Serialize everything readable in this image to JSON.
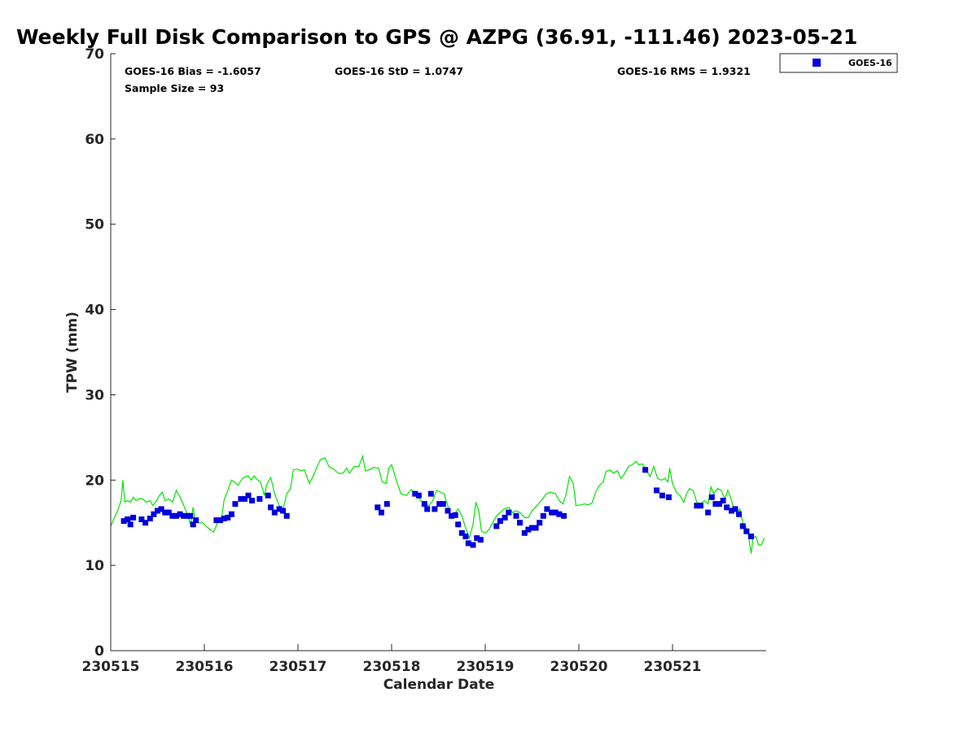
{
  "chart_data": {
    "type": "scatter",
    "title": "Weekly Full Disk Comparison to GPS @ AZPG (36.91, -111.46) 2023-05-21",
    "xlabel": "Calendar Date",
    "ylabel": "TPW (mm)",
    "xlim": [
      0,
      7
    ],
    "ylim": [
      0,
      70
    ],
    "yticks": [
      0,
      10,
      20,
      30,
      40,
      50,
      60,
      70
    ],
    "xticks": [
      {
        "value": 0,
        "label": "230515"
      },
      {
        "value": 1,
        "label": "230516"
      },
      {
        "value": 2,
        "label": "230517"
      },
      {
        "value": 3,
        "label": "230518"
      },
      {
        "value": 4,
        "label": "230519"
      },
      {
        "value": 5,
        "label": "230520"
      },
      {
        "value": 6,
        "label": "230521"
      }
    ],
    "grid": false,
    "legend_position": "outside-top-right",
    "stats": {
      "bias": "GOES-16 Bias = -1.6057",
      "std": "GOES-16 StD = 1.0747",
      "rms": "GOES-16 RMS = 1.9321",
      "sample": "Sample Size = 93"
    },
    "series": [
      {
        "name": "GOES-16",
        "kind": "scatter",
        "marker": "square",
        "color": "#0000dd",
        "points": [
          [
            0.14,
            15.2
          ],
          [
            0.18,
            15.4
          ],
          [
            0.21,
            14.8
          ],
          [
            0.24,
            15.6
          ],
          [
            0.33,
            15.4
          ],
          [
            0.37,
            15.0
          ],
          [
            0.42,
            15.5
          ],
          [
            0.46,
            16.0
          ],
          [
            0.5,
            16.4
          ],
          [
            0.54,
            16.6
          ],
          [
            0.58,
            16.2
          ],
          [
            0.62,
            16.2
          ],
          [
            0.66,
            15.8
          ],
          [
            0.7,
            15.8
          ],
          [
            0.74,
            16.0
          ],
          [
            0.78,
            15.8
          ],
          [
            0.82,
            15.8
          ],
          [
            0.85,
            15.8
          ],
          [
            0.88,
            14.8
          ],
          [
            0.91,
            15.3
          ],
          [
            1.13,
            15.3
          ],
          [
            1.17,
            15.3
          ],
          [
            1.21,
            15.5
          ],
          [
            1.25,
            15.6
          ],
          [
            1.29,
            16.0
          ],
          [
            1.33,
            17.2
          ],
          [
            1.39,
            17.8
          ],
          [
            1.43,
            17.8
          ],
          [
            1.47,
            18.2
          ],
          [
            1.51,
            17.6
          ],
          [
            1.59,
            17.8
          ],
          [
            1.68,
            18.2
          ],
          [
            1.71,
            16.8
          ],
          [
            1.75,
            16.2
          ],
          [
            1.8,
            16.6
          ],
          [
            1.84,
            16.4
          ],
          [
            1.88,
            15.8
          ],
          [
            2.85,
            16.8
          ],
          [
            2.89,
            16.2
          ],
          [
            2.95,
            17.2
          ],
          [
            3.25,
            18.4
          ],
          [
            3.29,
            18.2
          ],
          [
            3.35,
            17.2
          ],
          [
            3.38,
            16.6
          ],
          [
            3.42,
            18.4
          ],
          [
            3.46,
            16.6
          ],
          [
            3.51,
            17.2
          ],
          [
            3.55,
            17.2
          ],
          [
            3.6,
            16.4
          ],
          [
            3.64,
            15.8
          ],
          [
            3.68,
            15.9
          ],
          [
            3.71,
            14.8
          ],
          [
            3.75,
            13.8
          ],
          [
            3.79,
            13.4
          ],
          [
            3.82,
            12.6
          ],
          [
            3.87,
            12.4
          ],
          [
            3.91,
            13.2
          ],
          [
            3.95,
            13.0
          ],
          [
            4.12,
            14.6
          ],
          [
            4.16,
            15.2
          ],
          [
            4.21,
            15.6
          ],
          [
            4.25,
            16.2
          ],
          [
            4.33,
            15.8
          ],
          [
            4.37,
            15.0
          ],
          [
            4.42,
            13.8
          ],
          [
            4.46,
            14.2
          ],
          [
            4.5,
            14.4
          ],
          [
            4.54,
            14.4
          ],
          [
            4.58,
            15.0
          ],
          [
            4.62,
            15.8
          ],
          [
            4.66,
            16.6
          ],
          [
            4.71,
            16.2
          ],
          [
            4.75,
            16.2
          ],
          [
            4.79,
            16.0
          ],
          [
            4.84,
            15.8
          ],
          [
            5.71,
            21.2
          ],
          [
            5.83,
            18.8
          ],
          [
            5.89,
            18.2
          ],
          [
            5.96,
            18.0
          ],
          [
            6.26,
            17.0
          ],
          [
            6.3,
            17.0
          ],
          [
            6.38,
            16.2
          ],
          [
            6.42,
            18.0
          ],
          [
            6.46,
            17.2
          ],
          [
            6.5,
            17.2
          ],
          [
            6.54,
            17.6
          ],
          [
            6.58,
            16.8
          ],
          [
            6.63,
            16.4
          ],
          [
            6.67,
            16.6
          ],
          [
            6.71,
            16.0
          ],
          [
            6.75,
            14.6
          ],
          [
            6.79,
            14.0
          ],
          [
            6.84,
            13.4
          ]
        ]
      },
      {
        "kind": "line",
        "color": "#00e600",
        "points": [
          [
            0.0,
            14.6
          ],
          [
            0.04,
            15.6
          ],
          [
            0.08,
            16.6
          ],
          [
            0.11,
            17.6
          ],
          [
            0.13,
            20.0
          ],
          [
            0.15,
            17.4
          ],
          [
            0.18,
            17.6
          ],
          [
            0.21,
            17.4
          ],
          [
            0.24,
            18.0
          ],
          [
            0.27,
            17.6
          ],
          [
            0.3,
            17.8
          ],
          [
            0.34,
            17.8
          ],
          [
            0.38,
            17.4
          ],
          [
            0.42,
            17.6
          ],
          [
            0.45,
            17.0
          ],
          [
            0.48,
            17.4
          ],
          [
            0.52,
            18.2
          ],
          [
            0.55,
            18.6
          ],
          [
            0.58,
            17.6
          ],
          [
            0.62,
            17.8
          ],
          [
            0.66,
            17.4
          ],
          [
            0.7,
            18.8
          ],
          [
            0.74,
            18.0
          ],
          [
            0.78,
            17.0
          ],
          [
            0.82,
            16.0
          ],
          [
            0.85,
            14.8
          ],
          [
            0.88,
            16.8
          ],
          [
            0.9,
            15.4
          ],
          [
            0.94,
            15.0
          ],
          [
            0.98,
            15.0
          ],
          [
            1.02,
            14.6
          ],
          [
            1.06,
            14.2
          ],
          [
            1.1,
            13.9
          ],
          [
            1.14,
            15.0
          ],
          [
            1.18,
            15.2
          ],
          [
            1.21,
            17.6
          ],
          [
            1.25,
            18.8
          ],
          [
            1.29,
            20.0
          ],
          [
            1.33,
            19.7
          ],
          [
            1.36,
            19.4
          ],
          [
            1.4,
            20.1
          ],
          [
            1.43,
            20.4
          ],
          [
            1.47,
            20.5
          ],
          [
            1.5,
            20.0
          ],
          [
            1.53,
            20.5
          ],
          [
            1.56,
            20.1
          ],
          [
            1.6,
            19.8
          ],
          [
            1.64,
            18.2
          ],
          [
            1.67,
            19.6
          ],
          [
            1.71,
            20.3
          ],
          [
            1.75,
            18.4
          ],
          [
            1.8,
            17.0
          ],
          [
            1.84,
            16.6
          ],
          [
            1.88,
            18.4
          ],
          [
            1.92,
            19.0
          ],
          [
            1.95,
            21.2
          ],
          [
            1.99,
            21.3
          ],
          [
            2.03,
            21.1
          ],
          [
            2.07,
            21.2
          ],
          [
            2.12,
            19.6
          ],
          [
            2.16,
            20.4
          ],
          [
            2.2,
            21.5
          ],
          [
            2.24,
            22.4
          ],
          [
            2.29,
            22.6
          ],
          [
            2.33,
            21.6
          ],
          [
            2.38,
            21.3
          ],
          [
            2.43,
            20.8
          ],
          [
            2.48,
            20.8
          ],
          [
            2.52,
            21.4
          ],
          [
            2.55,
            20.8
          ],
          [
            2.6,
            21.6
          ],
          [
            2.65,
            21.6
          ],
          [
            2.69,
            22.8
          ],
          [
            2.72,
            21.1
          ],
          [
            2.76,
            21.2
          ],
          [
            2.81,
            21.5
          ],
          [
            2.86,
            21.4
          ],
          [
            2.9,
            19.8
          ],
          [
            2.94,
            19.6
          ],
          [
            2.97,
            21.4
          ],
          [
            3.0,
            21.8
          ],
          [
            3.05,
            20.0
          ],
          [
            3.1,
            18.4
          ],
          [
            3.16,
            18.2
          ],
          [
            3.21,
            18.9
          ],
          [
            3.26,
            18.4
          ],
          [
            3.31,
            17.6
          ],
          [
            3.35,
            17.2
          ],
          [
            3.4,
            17.0
          ],
          [
            3.44,
            17.6
          ],
          [
            3.48,
            18.8
          ],
          [
            3.52,
            18.6
          ],
          [
            3.56,
            18.4
          ],
          [
            3.6,
            17.0
          ],
          [
            3.63,
            15.6
          ],
          [
            3.67,
            16.0
          ],
          [
            3.71,
            16.6
          ],
          [
            3.75,
            15.8
          ],
          [
            3.79,
            14.4
          ],
          [
            3.83,
            13.2
          ],
          [
            3.87,
            14.8
          ],
          [
            3.9,
            17.4
          ],
          [
            3.93,
            16.4
          ],
          [
            3.96,
            14.0
          ],
          [
            4.0,
            13.8
          ],
          [
            4.04,
            14.2
          ],
          [
            4.08,
            15.0
          ],
          [
            4.12,
            15.8
          ],
          [
            4.16,
            16.2
          ],
          [
            4.2,
            16.6
          ],
          [
            4.25,
            16.8
          ],
          [
            4.29,
            16.2
          ],
          [
            4.33,
            16.4
          ],
          [
            4.37,
            16.2
          ],
          [
            4.42,
            15.6
          ],
          [
            4.46,
            15.6
          ],
          [
            4.5,
            16.4
          ],
          [
            4.55,
            17.0
          ],
          [
            4.6,
            17.6
          ],
          [
            4.65,
            18.4
          ],
          [
            4.7,
            18.6
          ],
          [
            4.75,
            18.4
          ],
          [
            4.79,
            17.6
          ],
          [
            4.83,
            17.2
          ],
          [
            4.86,
            18.2
          ],
          [
            4.9,
            20.4
          ],
          [
            4.94,
            19.6
          ],
          [
            4.97,
            17.0
          ],
          [
            5.02,
            17.1
          ],
          [
            5.06,
            17.2
          ],
          [
            5.1,
            17.1
          ],
          [
            5.14,
            17.3
          ],
          [
            5.18,
            18.6
          ],
          [
            5.22,
            19.4
          ],
          [
            5.26,
            19.8
          ],
          [
            5.29,
            21.0
          ],
          [
            5.33,
            21.2
          ],
          [
            5.37,
            20.8
          ],
          [
            5.41,
            21.1
          ],
          [
            5.45,
            20.2
          ],
          [
            5.49,
            20.8
          ],
          [
            5.53,
            21.6
          ],
          [
            5.57,
            21.8
          ],
          [
            5.61,
            22.2
          ],
          [
            5.64,
            21.8
          ],
          [
            5.68,
            21.9
          ],
          [
            5.72,
            21.2
          ],
          [
            5.76,
            20.4
          ],
          [
            5.8,
            21.6
          ],
          [
            5.84,
            20.2
          ],
          [
            5.88,
            20.0
          ],
          [
            5.92,
            20.2
          ],
          [
            5.95,
            19.8
          ],
          [
            5.97,
            21.4
          ],
          [
            6.0,
            19.6
          ],
          [
            6.04,
            18.6
          ],
          [
            6.08,
            18.2
          ],
          [
            6.12,
            17.4
          ],
          [
            6.15,
            18.4
          ],
          [
            6.18,
            19.0
          ],
          [
            6.22,
            18.8
          ],
          [
            6.26,
            17.4
          ],
          [
            6.3,
            17.2
          ],
          [
            6.34,
            17.6
          ],
          [
            6.38,
            17.2
          ],
          [
            6.41,
            19.2
          ],
          [
            6.44,
            18.4
          ],
          [
            6.48,
            19.0
          ],
          [
            6.52,
            18.8
          ],
          [
            6.56,
            17.8
          ],
          [
            6.59,
            18.8
          ],
          [
            6.62,
            18.0
          ],
          [
            6.65,
            16.8
          ],
          [
            6.69,
            16.2
          ],
          [
            6.72,
            16.6
          ],
          [
            6.75,
            15.0
          ],
          [
            6.78,
            14.6
          ],
          [
            6.81,
            13.6
          ],
          [
            6.84,
            11.4
          ],
          [
            6.86,
            13.2
          ],
          [
            6.89,
            13.4
          ],
          [
            6.92,
            12.4
          ],
          [
            6.95,
            12.4
          ],
          [
            6.98,
            13.2
          ]
        ]
      }
    ]
  }
}
